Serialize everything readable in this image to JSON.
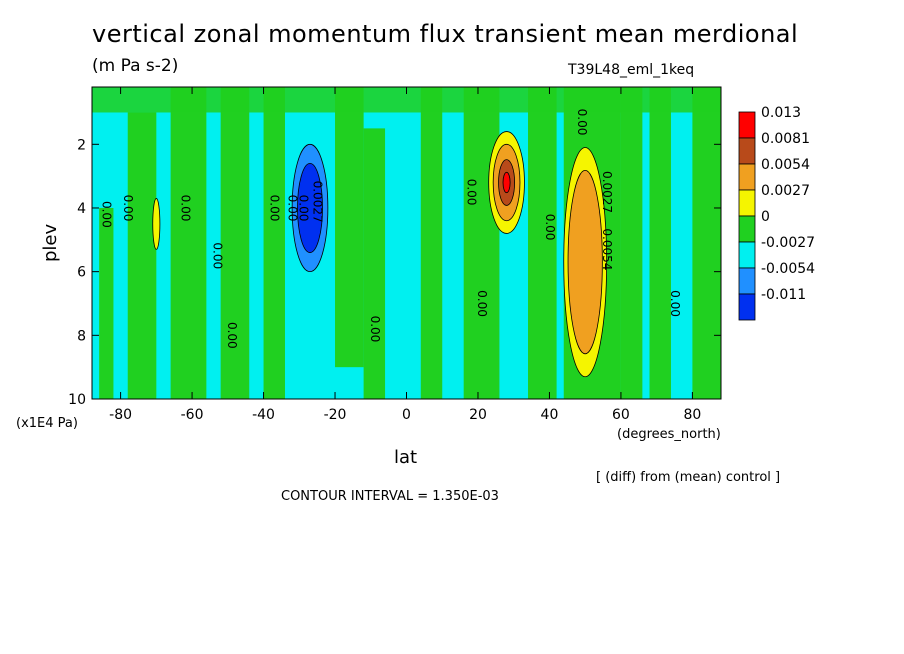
{
  "header": {
    "title": "vertical zonal momentum flux transient mean merdional",
    "units": "(m Pa s-2)",
    "run_name": "T39L48_eml_1keq"
  },
  "footer": {
    "diff_note": "[ (diff) from (mean) control ]",
    "contour_interval": "CONTOUR INTERVAL = 1.350E-03"
  },
  "chart_data": {
    "type": "heatmap",
    "title": "vertical zonal momentum flux transient mean merdional",
    "subtitle": "(m Pa s-2)",
    "xlabel": "lat",
    "x_units": "(degrees_north)",
    "ylabel": "plev",
    "y_multiplier": "(x1E4 Pa)",
    "xlim": [
      -88,
      88
    ],
    "ylim": [
      10,
      0.2
    ],
    "x_ticks": [
      "-80",
      "-60",
      "-40",
      "-20",
      "0",
      "20",
      "40",
      "60",
      "80"
    ],
    "x_tick_values": [
      -80,
      -60,
      -40,
      -20,
      0,
      20,
      40,
      60,
      80
    ],
    "y_ticks": [
      "2",
      "4",
      "6",
      "8",
      "10"
    ],
    "y_tick_values": [
      2,
      4,
      6,
      8,
      10
    ],
    "contour_interval": 0.00135,
    "colorbar": {
      "levels": [
        "0.013",
        "0.0081",
        "0.0054",
        "0.0027",
        "0",
        "-0.0027",
        "-0.0054",
        "-0.011"
      ],
      "colors": [
        "#ff0000",
        "#b84a1a",
        "#f0a020",
        "#f5f500",
        "#20d020",
        "#00f0f0",
        "#2090ff",
        "#0030f0"
      ]
    },
    "contour_labels": [
      {
        "text": "0.00",
        "lat": -85,
        "plev": 4.2
      },
      {
        "text": "0.00",
        "lat": -79,
        "plev": 4.0
      },
      {
        "text": "0.00",
        "lat": -63,
        "plev": 4.0
      },
      {
        "text": "0.00",
        "lat": -54,
        "plev": 5.5
      },
      {
        "text": "0.00",
        "lat": -50,
        "plev": 8.0
      },
      {
        "text": "0.00",
        "lat": -38,
        "plev": 4.0
      },
      {
        "text": "0.00",
        "lat": -33,
        "plev": 4.0
      },
      {
        "text": "0.00",
        "lat": -30,
        "plev": 4.0
      },
      {
        "text": "0.0027",
        "lat": -26,
        "plev": 3.8
      },
      {
        "text": "0.00",
        "lat": -10,
        "plev": 7.8
      },
      {
        "text": "0.00",
        "lat": 17,
        "plev": 3.5
      },
      {
        "text": "0.00",
        "lat": 20,
        "plev": 7.0
      },
      {
        "text": "0.00",
        "lat": 39,
        "plev": 4.6
      },
      {
        "text": "0.00",
        "lat": 48,
        "plev": 1.3
      },
      {
        "text": "0.0027",
        "lat": 55,
        "plev": 3.5
      },
      {
        "text": "0.0054",
        "lat": 55,
        "plev": 5.3
      },
      {
        "text": "0.00",
        "lat": 74,
        "plev": 7.0
      }
    ],
    "features": [
      {
        "sign": "negative",
        "peak": -0.011,
        "lat": -27,
        "plev": 4.0,
        "lat_halfwidth": 5,
        "plev_halfwidth": 2.0
      },
      {
        "sign": "positive",
        "peak": 0.013,
        "lat": 28,
        "plev": 3.2,
        "lat_halfwidth": 5,
        "plev_halfwidth": 1.6
      },
      {
        "sign": "positive",
        "peak": 0.0081,
        "lat": 50,
        "plev": 5.7,
        "lat_halfwidth": 6,
        "plev_halfwidth": 3.6
      },
      {
        "sign": "positive",
        "peak": 0.0027,
        "lat": -70,
        "plev": 4.5,
        "lat_halfwidth": 1,
        "plev_halfwidth": 0.8
      }
    ]
  }
}
